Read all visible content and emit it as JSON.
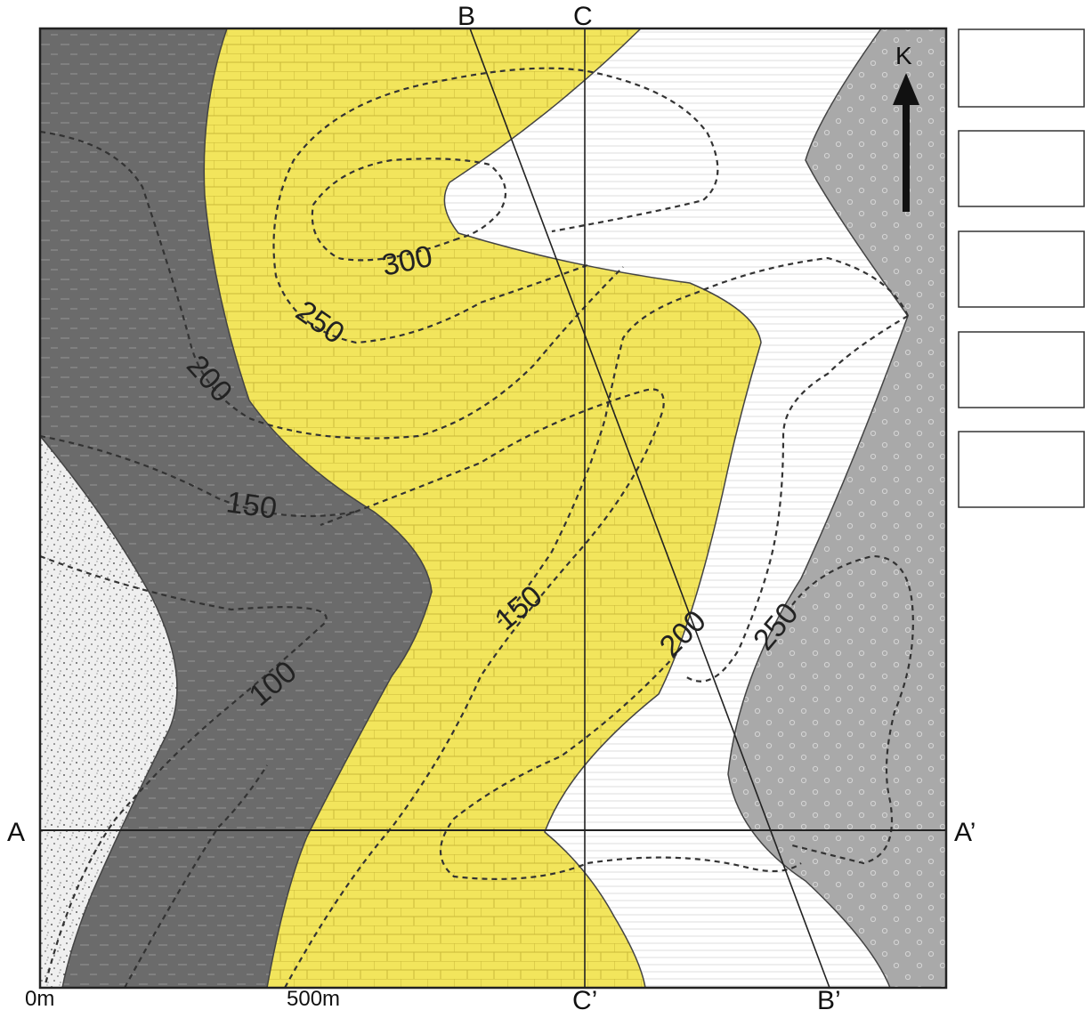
{
  "map": {
    "north_label": "K",
    "section_lines": [
      {
        "start": "A",
        "end": "A’"
      },
      {
        "start": "B",
        "end": "B’"
      },
      {
        "start": "C",
        "end": "C’"
      }
    ],
    "contours": [
      "100",
      "150",
      "200",
      "250",
      "300",
      "150",
      "200",
      "250"
    ],
    "scale": {
      "start": "0m",
      "end": "500m"
    },
    "colors": {
      "dark_shale": "#6b6b6b",
      "yellow_limestone": "#f2e55c",
      "white_layer": "#ffffff",
      "grey_dotted": "#a9a9a9",
      "speckled_sand": "#efefef"
    },
    "legend_boxes": [
      "",
      "",
      "",
      "",
      ""
    ]
  }
}
